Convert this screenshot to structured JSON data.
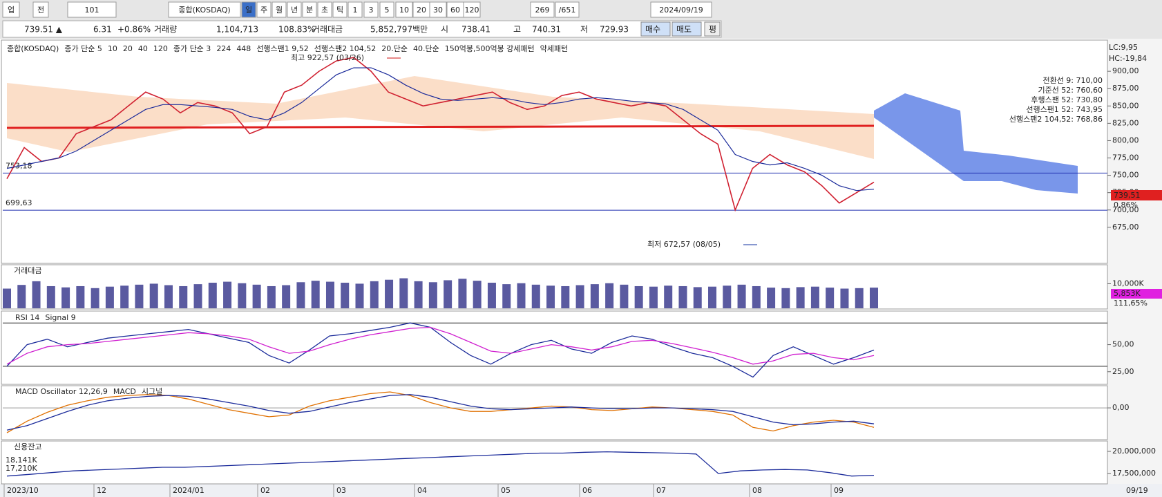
{
  "toolbar": {
    "items": [
      "업",
      "전",
      "101",
      "종합(KOSDAQ)",
      "일",
      "주",
      "월",
      "년",
      "분",
      "초",
      "틱",
      "1",
      "3",
      "5",
      "10",
      "20",
      "30",
      "60",
      "120",
      "269",
      "/651",
      "2024/09/19"
    ]
  },
  "quote": {
    "items": [
      "739.51 ▲",
      "6.31",
      "+0.86%",
      "거래량",
      "1,104,713",
      "108.83%",
      "거래대금",
      "5,852,797백만",
      "시",
      "738.41",
      "고",
      "740.31",
      "저",
      "729.93",
      "매수",
      "매도",
      "평"
    ]
  },
  "main": {
    "legend": [
      {
        "text": "종합(KOSDAQ)",
        "color": "#222222"
      },
      {
        "text": "종가 단순 5",
        "color": "#c000c0"
      },
      {
        "text": "10",
        "color": "#1030d0"
      },
      {
        "text": "20",
        "color": "#1030d0"
      },
      {
        "text": "40",
        "color": "#008000"
      },
      {
        "text": "120",
        "color": "#808080"
      },
      {
        "text": "종가 단순 3",
        "color": "#c000c0"
      },
      {
        "text": "224",
        "color": "#008000"
      },
      {
        "text": "448",
        "color": "#008000"
      },
      {
        "text": "선행스팬1 9,52",
        "color": "#f08040"
      },
      {
        "text": "선행스팬2 104,52",
        "color": "#3050e0"
      },
      {
        "text": "20.단순",
        "color": "#00c0c0"
      },
      {
        "text": "40.단순",
        "color": "#f07000"
      },
      {
        "text": "150억봉,500억봉 강세패턴",
        "color": "#222222"
      },
      {
        "text": "약세패턴",
        "color": "#222222"
      }
    ],
    "ylim": [
      624,
      943
    ],
    "yticks": [
      {
        "value": 675,
        "label": "675,00"
      },
      {
        "value": 700,
        "label": "700,00"
      },
      {
        "value": 725,
        "label": "725,00"
      },
      {
        "value": 750,
        "label": "750,00"
      },
      {
        "value": 775,
        "label": "775,00"
      },
      {
        "value": 800,
        "label": "800,00"
      },
      {
        "value": 825,
        "label": "825,00"
      },
      {
        "value": 850,
        "label": "850,00"
      },
      {
        "value": 875,
        "label": "875,00"
      },
      {
        "value": 900,
        "label": "900,00"
      }
    ],
    "series": [
      {
        "name": "종가",
        "color": "#d02030",
        "values": [
          745,
          790,
          770,
          775,
          810,
          820,
          830,
          850,
          870,
          860,
          840,
          855,
          850,
          840,
          810,
          820,
          870,
          880,
          900,
          915,
          920,
          900,
          870,
          860,
          850,
          855,
          860,
          865,
          870,
          855,
          845,
          850,
          865,
          870,
          860,
          855,
          850,
          855,
          850,
          830,
          810,
          795,
          700,
          760,
          780,
          765,
          755,
          735,
          710,
          725,
          740
        ]
      },
      {
        "name": "이동평균",
        "color": "#1a2a9a",
        "values": [
          760,
          765,
          770,
          775,
          785,
          800,
          815,
          830,
          845,
          852,
          852,
          850,
          848,
          845,
          835,
          830,
          840,
          855,
          875,
          895,
          905,
          905,
          895,
          880,
          868,
          860,
          858,
          860,
          862,
          860,
          855,
          852,
          855,
          860,
          862,
          860,
          857,
          855,
          853,
          845,
          830,
          815,
          780,
          770,
          765,
          768,
          760,
          750,
          735,
          728,
          730
        ]
      }
    ],
    "levels": [
      {
        "value": 753.18,
        "label": "753,18"
      },
      {
        "value": 699.63,
        "label": "699,63"
      }
    ],
    "annotations": [
      "최고 922,57 (03/26)",
      "최저 672,57 (08/05)"
    ],
    "side": [
      "LC:9,95",
      "HC:-19,84",
      "전환선 9: 710,00",
      "기준선 52: 760,60",
      "후행스팬 52: 730,80",
      "선행스팬1 52: 743,95",
      "선행스팬2 104,52: 768,86"
    ],
    "price_tag": "739,51",
    "pct_tag": "0,86%"
  },
  "volume": {
    "title": "거래대금",
    "ylim": [
      0,
      17700
    ],
    "yticks": [
      {
        "value": 10000,
        "label": "10,000K"
      }
    ],
    "values": [
      8000,
      9500,
      11000,
      9000,
      8500,
      9000,
      8200,
      8800,
      9200,
      9600,
      10000,
      9400,
      9000,
      9800,
      10400,
      10800,
      10200,
      9600,
      9000,
      9400,
      10600,
      11200,
      10800,
      10400,
      10000,
      11000,
      11600,
      12200,
      11000,
      10600,
      11400,
      12000,
      11200,
      10400,
      9800,
      10200,
      9600,
      9200,
      9000,
      9400,
      9800,
      10200,
      9600,
      9000,
      8800,
      9200,
      9000,
      8600,
      8800,
      9200,
      9600,
      9000,
      8400,
      8200,
      8600,
      8800,
      8400,
      8000,
      8200,
      8400
    ],
    "tag": "5,853K",
    "pct": "111,65%"
  },
  "rsi": {
    "legend": [
      {
        "text": "RSI 14",
        "color": "#1a2a9a"
      },
      {
        "text": "Signal 9",
        "color": "#d020d0"
      }
    ],
    "ylim": [
      14,
      81
    ],
    "yticks": [
      {
        "value": 25,
        "label": "25,00"
      },
      {
        "value": 50,
        "label": "50,00"
      }
    ],
    "levels": [
      70,
      30
    ],
    "series": [
      {
        "name": "RSI 14",
        "color": "#1a2a9a",
        "values": [
          30,
          50,
          55,
          48,
          52,
          56,
          58,
          60,
          62,
          64,
          60,
          56,
          52,
          40,
          33,
          45,
          58,
          60,
          63,
          66,
          70,
          66,
          52,
          40,
          32,
          42,
          50,
          54,
          46,
          42,
          52,
          58,
          55,
          48,
          42,
          38,
          30,
          20,
          40,
          48,
          40,
          32,
          38,
          45
        ]
      },
      {
        "name": "Signal 9",
        "color": "#d020d0",
        "values": [
          32,
          42,
          48,
          50,
          51,
          53,
          55,
          57,
          59,
          61,
          60,
          58,
          55,
          48,
          42,
          44,
          50,
          55,
          59,
          62,
          65,
          66,
          60,
          52,
          44,
          42,
          46,
          50,
          48,
          45,
          48,
          53,
          54,
          51,
          47,
          43,
          38,
          32,
          35,
          41,
          42,
          38,
          36,
          40
        ]
      }
    ]
  },
  "macd": {
    "legend": [
      {
        "text": "MACD Oscillator 12,26,9",
        "color": "#d020d0"
      },
      {
        "text": "MACD",
        "color": "#e07000"
      },
      {
        "text": "시그널",
        "color": "#1a2a9a"
      }
    ],
    "ylim": [
      -35,
      25
    ],
    "yticks": [
      {
        "value": 0,
        "label": "0,00"
      }
    ],
    "series": [
      {
        "name": "MACD",
        "color": "#e07000",
        "values": [
          -28,
          -15,
          -5,
          3,
          8,
          12,
          14,
          15,
          14,
          10,
          4,
          -2,
          -6,
          -10,
          -8,
          2,
          8,
          12,
          16,
          18,
          14,
          6,
          0,
          -4,
          -4,
          -2,
          0,
          2,
          1,
          -2,
          -3,
          -1,
          1,
          0,
          -2,
          -4,
          -8,
          -22,
          -26,
          -20,
          -16,
          -14,
          -16,
          -22
        ]
      },
      {
        "name": "시그널",
        "color": "#1a2a9a",
        "values": [
          -25,
          -20,
          -12,
          -4,
          3,
          8,
          11,
          13,
          14,
          13,
          10,
          6,
          2,
          -3,
          -6,
          -4,
          1,
          6,
          10,
          14,
          15,
          12,
          7,
          2,
          -1,
          -2,
          -1,
          0,
          1,
          0,
          -1,
          -1,
          0,
          0,
          -1,
          -2,
          -4,
          -10,
          -16,
          -19,
          -18,
          -16,
          -15,
          -18
        ]
      }
    ]
  },
  "credit": {
    "title": "신용잔고",
    "ylim": [
      16330000,
      21170000
    ],
    "yticks": [
      {
        "value": 17500000,
        "label": "17,500,000"
      },
      {
        "value": 20000000,
        "label": "20,000,000"
      }
    ],
    "values": [
      17210000,
      17400000,
      17600000,
      17800000,
      17900000,
      18000000,
      18100000,
      18200000,
      18200000,
      18300000,
      18400000,
      18500000,
      18600000,
      18700000,
      18800000,
      18900000,
      19000000,
      19100000,
      19200000,
      19300000,
      19400000,
      19500000,
      19600000,
      19700000,
      19800000,
      19800000,
      19900000,
      19950000,
      19900000,
      19850000,
      19800000,
      19700000,
      17500000,
      17800000,
      17900000,
      17950000,
      17900000,
      17600000,
      17210000,
      17300000
    ],
    "labels": [
      "18,141K",
      "17,210K"
    ]
  },
  "xaxis": {
    "labels": [
      "2023/10",
      "12",
      "2024/01",
      "02",
      "03",
      "04",
      "05",
      "06",
      "07",
      "08",
      "09"
    ],
    "last": "09/19"
  }
}
